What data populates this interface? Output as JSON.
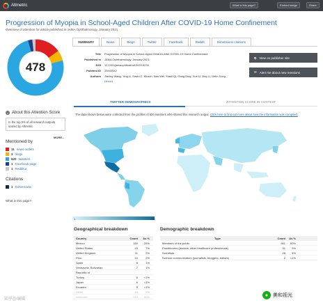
{
  "header": {
    "brand": "Altmetric",
    "buttons": [
      "What is this page?",
      "Embed badge",
      "Share"
    ]
  },
  "article": {
    "title": "Progression of Myopia in School-Aged Children After COVID-19 Home Confinement",
    "subtitle": "Overview of attention for article published in JAMA Ophthalmology, January 2021"
  },
  "score": {
    "value": "478",
    "about_title": "About this Attention Score",
    "summary": "In the top 5% of all research outputs scored by Altmetric",
    "more_label": "MORE..."
  },
  "mentions": {
    "title": "Mentioned by",
    "items": [
      {
        "count": "11",
        "label": "news outlets",
        "color": "#e02020"
      },
      {
        "count": "3",
        "label": "blogs",
        "color": "#f6b600"
      },
      {
        "count": "620",
        "label": "tweeters",
        "color": "#2aa6e1"
      },
      {
        "count": "1",
        "label": "Facebook page",
        "color": "#1f3f8a"
      },
      {
        "count": "1",
        "label": "Redditor",
        "color": "#c9c9c9"
      }
    ]
  },
  "citations": {
    "title": "Citations",
    "items": [
      {
        "count": "1",
        "label": "Dimensions",
        "color": "#0d2a4f"
      }
    ]
  },
  "whatis": "What is this page?",
  "tabs": [
    "SUMMARY",
    "News",
    "Blogs",
    "Twitter",
    "Facebook",
    "Reddit",
    "Dimensions citations"
  ],
  "meta": [
    {
      "label": "Title",
      "value": "Progression of Myopia in School-Aged Children After COVID-19 Home Confinement"
    },
    {
      "label": "Published in",
      "value": "JAMA Ophthalmology, January 2021"
    },
    {
      "label": "DOI",
      "value": "10.1001/jamaophthalmol.2020.6239"
    },
    {
      "label": "Pubmed ID",
      "value": "33443542"
    },
    {
      "label": "Authors",
      "value": "Jiaxing Wang, Ying Li, David C. Musch, Nan Wei, Xiaoli Qi, Gang Ding, Xue Li, Jing Li, Linlin Song..."
    },
    {
      "label": "",
      "value": "(show)"
    }
  ],
  "actions": [
    "View on publisher site",
    "Alert me about new mentions"
  ],
  "subtabs": [
    "TWITTER DEMOGRAPHICS",
    "ATTENTION SCORE IN CONTEXT"
  ],
  "note": {
    "text": "The data shown below were collected from the profiles of 620 tweeters who shared this research output.",
    "link": "Click here to find out more about how the information was compiled."
  },
  "scale": {
    "min": "1",
    "max": "160",
    "max_fraction": 1.0
  },
  "geo": {
    "title": "Geographical breakdown",
    "headers": [
      "Country",
      "Count",
      "As %"
    ],
    "rows": [
      [
        "Mexico",
        "160",
        "26%"
      ],
      [
        "United States",
        "43",
        "7%"
      ],
      [
        "United Kingdom",
        "11",
        "2%"
      ],
      [
        "Peru",
        "10",
        "2%"
      ],
      [
        "Spain",
        "8",
        "1%"
      ],
      [
        "Venezuela, Bolivarian",
        "7",
        "1%"
      ],
      [
        "Republic of",
        "",
        ""
      ],
      [
        "Turkey",
        "6",
        "<1%"
      ],
      [
        "Japan",
        "6",
        "<1%"
      ],
      [
        "Ecuador",
        "5",
        "<1%"
      ],
      [
        "Other",
        "54",
        "9%"
      ],
      [
        "Unknown",
        "310",
        "50%"
      ]
    ]
  },
  "demo": {
    "title": "Demographic breakdown",
    "headers": [
      "Type",
      "Count",
      "As %"
    ],
    "rows": [
      [
        "Members of the public",
        "561",
        "90%"
      ],
      [
        "Practitioners (doctors, other healthcare professionals)",
        "31",
        "5%"
      ],
      [
        "Scientists",
        "26",
        "4%"
      ],
      [
        "Science communicators (journalists, bloggers, editors)",
        "2",
        "<1%"
      ]
    ]
  },
  "watermark": {
    "left": "知乎@编辑",
    "right": "美和视光"
  }
}
